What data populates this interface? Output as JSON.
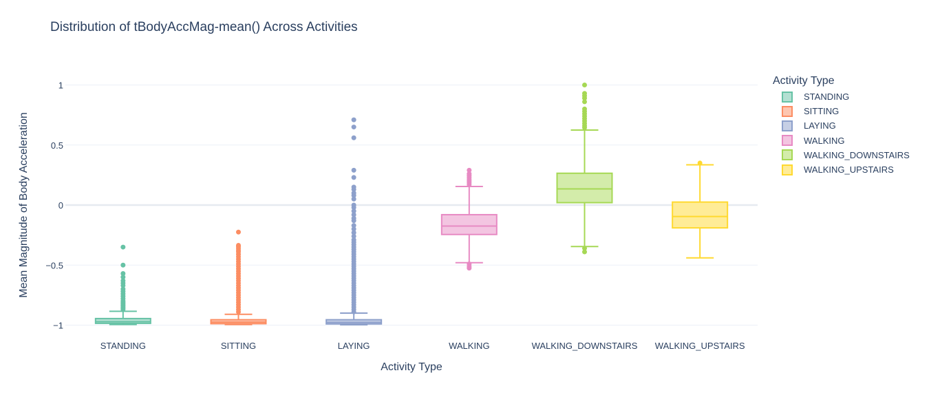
{
  "chart_data": {
    "type": "box",
    "title": "Distribution of tBodyAccMag-mean() Across Activities",
    "xlabel": "Activity Type",
    "ylabel": "Mean Magnitude of Body Acceleration",
    "ylim": [
      -1.02,
      1.1
    ],
    "yticks": [
      -1,
      -0.5,
      0,
      0.5,
      1
    ],
    "ytick_labels": [
      "−1",
      "−0.5",
      "0",
      "0.5",
      "1"
    ],
    "grid": true,
    "legend_title": "Activity Type",
    "legend_position": "right",
    "categories": [
      "STANDING",
      "SITTING",
      "LAYING",
      "WALKING",
      "WALKING_DOWNSTAIRS",
      "WALKING_UPSTAIRS"
    ],
    "series": [
      {
        "name": "STANDING",
        "color": "#66c2a5",
        "fill": "#b3e0d2",
        "min": -0.995,
        "q1": -0.985,
        "median": -0.971,
        "q3": -0.945,
        "max": -0.885,
        "outliers": [
          -0.35,
          -0.5,
          -0.57,
          -0.6,
          -0.63,
          -0.65,
          -0.67,
          -0.7,
          -0.72,
          -0.74,
          -0.76,
          -0.78,
          -0.8,
          -0.81,
          -0.82,
          -0.83,
          -0.84,
          -0.85,
          -0.86,
          -0.87
        ]
      },
      {
        "name": "SITTING",
        "color": "#fc8d62",
        "fill": "#fdc6b0",
        "min": -0.995,
        "q1": -0.988,
        "median": -0.975,
        "q3": -0.955,
        "max": -0.91,
        "outliers": [
          -0.225,
          -0.335,
          -0.345,
          -0.36,
          -0.375,
          -0.39,
          -0.41,
          -0.43,
          -0.45,
          -0.47,
          -0.49,
          -0.51,
          -0.53,
          -0.55,
          -0.57,
          -0.59,
          -0.61,
          -0.63,
          -0.65,
          -0.67,
          -0.69,
          -0.71,
          -0.73,
          -0.75,
          -0.77,
          -0.79,
          -0.81,
          -0.83,
          -0.85,
          -0.87,
          -0.89
        ]
      },
      {
        "name": "LAYING",
        "color": "#8da0cb",
        "fill": "#c6cfe5",
        "min": -0.997,
        "q1": -0.99,
        "median": -0.977,
        "q3": -0.955,
        "max": -0.9,
        "outliers": [
          0.71,
          0.65,
          0.56,
          0.29,
          0.23,
          0.15,
          0.13,
          0.1,
          0.08,
          0.05,
          0.0,
          -0.02,
          -0.05,
          -0.08,
          -0.11,
          -0.13,
          -0.17,
          -0.2,
          -0.23,
          -0.26,
          -0.29,
          -0.31,
          -0.33,
          -0.35,
          -0.37,
          -0.39,
          -0.41,
          -0.43,
          -0.45,
          -0.47,
          -0.49,
          -0.51,
          -0.53,
          -0.55,
          -0.57,
          -0.59,
          -0.61,
          -0.63,
          -0.65,
          -0.67,
          -0.69,
          -0.71,
          -0.73,
          -0.75,
          -0.77,
          -0.79,
          -0.81,
          -0.83,
          -0.85,
          -0.87,
          -0.89
        ]
      },
      {
        "name": "WALKING",
        "color": "#e78ac3",
        "fill": "#f3c5e1",
        "min": -0.48,
        "q1": -0.245,
        "median": -0.175,
        "q3": -0.08,
        "max": 0.155,
        "outliers": [
          0.29,
          0.26,
          0.245,
          0.23,
          0.215,
          0.2,
          0.185,
          0.17,
          -0.49,
          -0.51,
          -0.525
        ]
      },
      {
        "name": "WALKING_DOWNSTAIRS",
        "color": "#a6d854",
        "fill": "#d3ecaa",
        "min": -0.345,
        "q1": 0.02,
        "median": 0.135,
        "q3": 0.265,
        "max": 0.625,
        "outliers": [
          1.0,
          0.93,
          0.91,
          0.89,
          0.86,
          0.8,
          0.78,
          0.76,
          0.74,
          0.72,
          0.7,
          0.68,
          0.66,
          0.645,
          -0.36,
          -0.39
        ]
      },
      {
        "name": "WALKING_UPSTAIRS",
        "color": "#ffd92f",
        "fill": "#ffec97",
        "min": -0.44,
        "q1": -0.19,
        "median": -0.095,
        "q3": 0.025,
        "max": 0.335,
        "outliers": [
          0.35
        ]
      }
    ]
  }
}
